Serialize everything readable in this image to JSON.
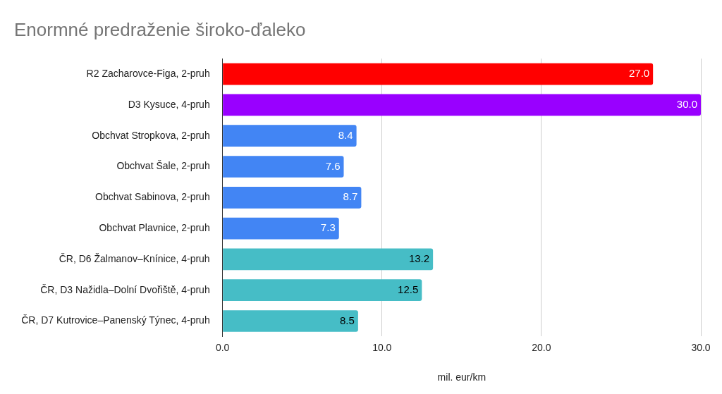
{
  "chart_data": {
    "type": "bar",
    "orientation": "horizontal",
    "title": "Enormné predraženie široko-ďaleko",
    "xlabel": "mil. eur/km",
    "categories": [
      "R2 Zacharovce-Figa, 2-pruh",
      "D3 Kysuce, 4-pruh",
      "Obchvat Stropkova, 2-pruh",
      "Obchvat Šale, 2-pruh",
      "Obchvat Sabinova, 2-pruh",
      "Obchvat Plavnice, 2-pruh",
      "ČR, D6 Žalmanov–Knínice, 4-pruh",
      "ČR, D3 Nažidla–Dolní Dvořiště, 4-pruh",
      "ČR, D7 Kutrovice–Panenský Týnec, 4-pruh"
    ],
    "values": [
      27.0,
      30.0,
      8.4,
      7.6,
      8.7,
      7.3,
      13.2,
      12.5,
      8.5
    ],
    "value_labels": [
      "27.0",
      "30.0",
      "8.4",
      "7.6",
      "8.7",
      "7.3",
      "13.2",
      "12.5",
      "8.5"
    ],
    "colors": [
      "#ff0000",
      "#9900ff",
      "#4285f4",
      "#4285f4",
      "#4285f4",
      "#4285f4",
      "#46bdc6",
      "#46bdc6",
      "#46bdc6"
    ],
    "xlim": [
      0,
      30
    ],
    "xticks": [
      {
        "value": 0,
        "label": "0.0"
      },
      {
        "value": 10,
        "label": "10.0"
      },
      {
        "value": 20,
        "label": "20.0"
      },
      {
        "value": 30,
        "label": "30.0"
      }
    ],
    "grid": "x",
    "legend": false
  }
}
